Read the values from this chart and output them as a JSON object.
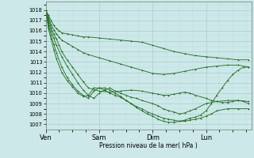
{
  "background_color": "#cce8e8",
  "plot_bg_color": "#cce8e8",
  "grid_major_color": "#aacccc",
  "grid_minor_color": "#bbdddd",
  "line_color": "#1a6b1a",
  "xlabel_text": "Pression niveau de la mer( hPa )",
  "x_tick_labels": [
    "Ven",
    "Sam",
    "Dim",
    "Lun"
  ],
  "x_tick_pos": [
    0,
    1,
    2,
    3
  ],
  "ylim": [
    1006.5,
    1018.8
  ],
  "yticks": [
    1007,
    1008,
    1009,
    1010,
    1011,
    1012,
    1013,
    1014,
    1015,
    1016,
    1017,
    1018
  ],
  "xlim": [
    0,
    3.85
  ],
  "series": [
    {
      "x": [
        0.0,
        0.05,
        0.1,
        0.15,
        0.2,
        0.25,
        0.3,
        0.4,
        0.5,
        0.6,
        0.7,
        0.8,
        1.0,
        1.2,
        1.4,
        1.6,
        1.8,
        2.0,
        2.2,
        2.4,
        2.6,
        2.8,
        3.0,
        3.2,
        3.4,
        3.6,
        3.8
      ],
      "y": [
        1018.0,
        1017.5,
        1017.0,
        1016.5,
        1016.2,
        1016.0,
        1015.8,
        1015.7,
        1015.6,
        1015.5,
        1015.4,
        1015.4,
        1015.3,
        1015.2,
        1015.1,
        1015.0,
        1014.9,
        1014.6,
        1014.3,
        1014.0,
        1013.8,
        1013.6,
        1013.5,
        1013.4,
        1013.3,
        1013.2,
        1013.2
      ]
    },
    {
      "x": [
        0.0,
        0.05,
        0.1,
        0.15,
        0.2,
        0.25,
        0.3,
        0.4,
        0.5,
        0.6,
        0.7,
        0.8,
        1.0,
        1.2,
        1.4,
        1.6,
        1.8,
        2.0,
        2.2,
        2.4,
        2.6,
        2.8,
        3.0,
        3.2,
        3.4,
        3.6,
        3.8
      ],
      "y": [
        1018.0,
        1017.3,
        1016.6,
        1016.1,
        1015.7,
        1015.4,
        1015.1,
        1014.8,
        1014.5,
        1014.2,
        1013.9,
        1013.7,
        1013.4,
        1013.1,
        1012.8,
        1012.5,
        1012.2,
        1011.9,
        1011.8,
        1011.9,
        1012.1,
        1012.3,
        1012.5,
        1012.6,
        1012.7,
        1012.7,
        1012.5
      ]
    },
    {
      "x": [
        0.0,
        0.05,
        0.1,
        0.15,
        0.2,
        0.25,
        0.3,
        0.4,
        0.5,
        0.6,
        0.7,
        0.8,
        1.0,
        1.2,
        1.4,
        1.6,
        1.8,
        2.0,
        2.1,
        2.2,
        2.3,
        2.4,
        2.5,
        2.6,
        2.7,
        2.8,
        3.0,
        3.1,
        3.2,
        3.3,
        3.4,
        3.5,
        3.6,
        3.7,
        3.8
      ],
      "y": [
        1018.0,
        1017.1,
        1016.3,
        1015.7,
        1015.2,
        1014.6,
        1014.0,
        1013.2,
        1012.5,
        1011.8,
        1011.1,
        1010.5,
        1010.2,
        1010.1,
        1010.2,
        1010.3,
        1010.2,
        1010.0,
        1009.9,
        1009.8,
        1009.8,
        1009.9,
        1010.0,
        1010.1,
        1010.0,
        1009.8,
        1009.5,
        1009.3,
        1009.2,
        1009.1,
        1009.1,
        1009.2,
        1009.3,
        1009.2,
        1009.0
      ]
    },
    {
      "x": [
        0.0,
        0.05,
        0.1,
        0.15,
        0.2,
        0.3,
        0.4,
        0.5,
        0.6,
        0.7,
        0.8,
        0.9,
        1.0,
        1.1,
        1.2,
        1.3,
        1.4,
        1.5,
        1.6,
        1.7,
        1.8,
        2.0,
        2.1,
        2.2,
        2.3,
        2.4,
        2.5,
        2.6,
        2.7,
        2.8,
        3.0,
        3.2,
        3.4,
        3.6,
        3.8
      ],
      "y": [
        1018.0,
        1016.8,
        1016.0,
        1015.3,
        1014.6,
        1013.5,
        1012.6,
        1011.8,
        1011.0,
        1010.3,
        1009.8,
        1009.5,
        1010.0,
        1010.3,
        1010.5,
        1010.2,
        1010.0,
        1009.8,
        1009.6,
        1009.5,
        1009.3,
        1009.0,
        1008.8,
        1008.5,
        1008.3,
        1008.2,
        1008.0,
        1008.1,
        1008.3,
        1008.5,
        1009.0,
        1009.2,
        1009.3,
        1009.3,
        1009.2
      ]
    },
    {
      "x": [
        0.0,
        0.05,
        0.1,
        0.15,
        0.2,
        0.3,
        0.4,
        0.5,
        0.6,
        0.7,
        0.8,
        0.9,
        1.0,
        1.1,
        1.2,
        1.3,
        1.4,
        1.5,
        1.6,
        1.7,
        1.8,
        1.9,
        2.0,
        2.1,
        2.2,
        2.3,
        2.4,
        2.5,
        2.6,
        2.7,
        2.8,
        2.9,
        3.0,
        3.1,
        3.2,
        3.4,
        3.6,
        3.8
      ],
      "y": [
        1018.0,
        1016.5,
        1015.6,
        1014.7,
        1013.9,
        1012.5,
        1011.5,
        1010.8,
        1010.2,
        1009.8,
        1009.5,
        1010.2,
        1010.5,
        1010.3,
        1010.0,
        1009.8,
        1009.6,
        1009.3,
        1009.0,
        1008.7,
        1008.5,
        1008.2,
        1008.0,
        1007.8,
        1007.6,
        1007.5,
        1007.4,
        1007.3,
        1007.3,
        1007.4,
        1007.5,
        1007.6,
        1007.8,
        1008.0,
        1008.3,
        1008.5,
        1008.5,
        1008.5
      ]
    },
    {
      "x": [
        0.0,
        0.05,
        0.1,
        0.15,
        0.2,
        0.3,
        0.4,
        0.5,
        0.6,
        0.7,
        0.8,
        0.9,
        1.0,
        1.1,
        1.2,
        1.3,
        1.4,
        1.5,
        1.6,
        1.7,
        1.8,
        1.9,
        2.0,
        2.1,
        2.2,
        2.3,
        2.4,
        2.5,
        2.6,
        2.7,
        2.8,
        2.9,
        3.0,
        3.1,
        3.2,
        3.3,
        3.4,
        3.5,
        3.6,
        3.7,
        3.8
      ],
      "y": [
        1018.0,
        1016.2,
        1015.2,
        1014.2,
        1013.3,
        1012.0,
        1011.2,
        1010.6,
        1010.0,
        1009.7,
        1009.8,
        1010.5,
        1010.5,
        1010.5,
        1010.3,
        1010.0,
        1009.7,
        1009.3,
        1009.0,
        1008.6,
        1008.3,
        1008.0,
        1007.8,
        1007.5,
        1007.3,
        1007.2,
        1007.2,
        1007.3,
        1007.4,
        1007.6,
        1007.7,
        1007.9,
        1008.3,
        1009.0,
        1009.8,
        1010.5,
        1011.2,
        1011.8,
        1012.2,
        1012.5,
        1012.5
      ]
    }
  ]
}
